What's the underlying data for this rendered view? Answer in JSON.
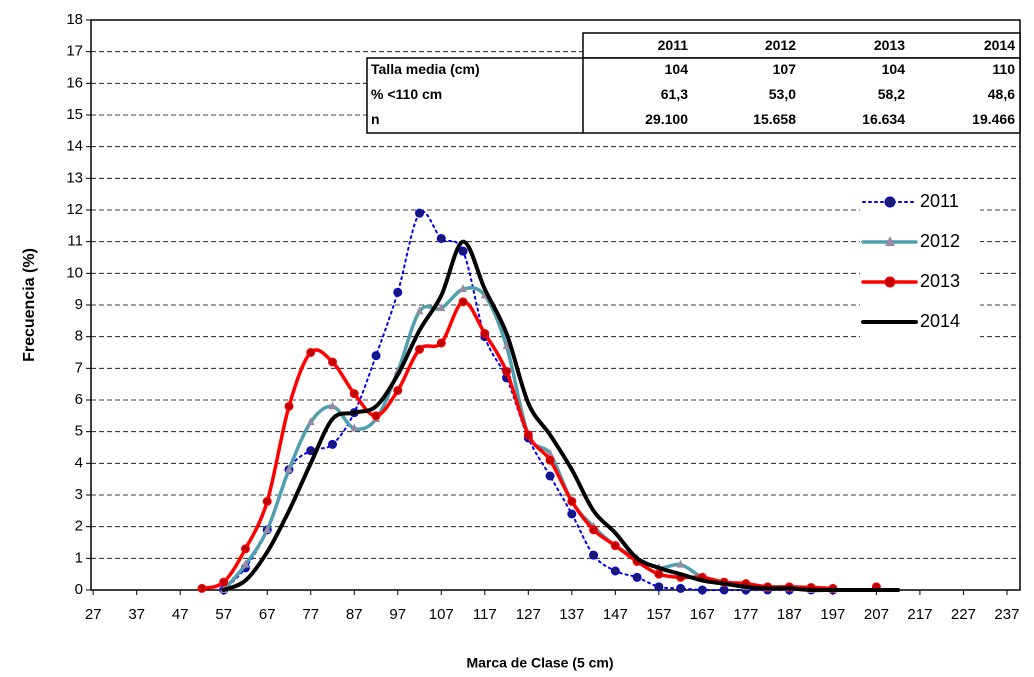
{
  "chart_data": {
    "type": "line",
    "y_label": "Frecuencia (%)",
    "x_label": "Marca de Clase (5 cm)",
    "x": [
      52,
      57,
      62,
      67,
      72,
      77,
      82,
      87,
      92,
      97,
      102,
      107,
      112,
      117,
      122,
      127,
      132,
      137,
      142,
      147,
      152,
      157,
      162,
      167,
      172,
      177,
      182,
      187,
      192,
      197,
      202,
      207,
      212
    ],
    "series": [
      {
        "name": "2011",
        "color": "#0000ee",
        "line_style": "dotted",
        "marker": "circle",
        "marker_color": "#1a1a6e",
        "values": [
          null,
          0,
          0.7,
          1.9,
          3.8,
          4.4,
          4.6,
          5.6,
          7.4,
          9.4,
          11.9,
          11.1,
          10.7,
          8.0,
          6.7,
          4.8,
          3.6,
          2.4,
          1.1,
          0.6,
          0.4,
          0.1,
          0.05,
          0,
          0,
          0,
          0,
          0,
          0,
          0,
          null,
          null,
          null
        ]
      },
      {
        "name": "2012",
        "color": "#4f9fae",
        "line_style": "solid",
        "marker": "triangle",
        "marker_color": "#9a8aa6",
        "values": [
          null,
          0,
          0.8,
          1.9,
          3.8,
          5.3,
          5.8,
          5.1,
          5.4,
          6.9,
          8.8,
          8.9,
          9.5,
          9.3,
          7.7,
          4.9,
          4.3,
          2.8,
          2.0,
          1.4,
          1.0,
          0.7,
          0.8,
          0.4,
          0.2,
          0.1,
          0.05,
          0.05,
          0,
          0,
          null,
          null,
          null
        ]
      },
      {
        "name": "2013",
        "color": "#ff0000",
        "line_style": "solid",
        "marker": "circle",
        "marker_color": "#c00000",
        "values": [
          0.05,
          0.25,
          1.3,
          2.8,
          5.8,
          7.5,
          7.2,
          6.2,
          5.5,
          6.3,
          7.6,
          7.8,
          9.1,
          8.1,
          6.9,
          4.9,
          4.1,
          2.8,
          1.9,
          1.4,
          0.9,
          0.5,
          0.4,
          0.4,
          0.25,
          0.2,
          0.1,
          0.1,
          0.08,
          0.05,
          null,
          0.1,
          null
        ]
      },
      {
        "name": "2014",
        "color": "#000000",
        "line_style": "solid",
        "marker": "none",
        "marker_color": "#000000",
        "values": [
          null,
          0,
          0.3,
          1.2,
          2.5,
          4.0,
          5.4,
          5.6,
          5.8,
          6.8,
          8.2,
          9.3,
          11.0,
          9.5,
          8.1,
          5.9,
          4.9,
          3.8,
          2.5,
          1.8,
          1.0,
          0.7,
          0.5,
          0.3,
          0.2,
          0.1,
          0.05,
          0.05,
          0,
          0,
          0,
          0,
          0
        ]
      }
    ],
    "xlim": [
      26.5,
      240
    ],
    "xticks": [
      27,
      37,
      47,
      57,
      67,
      77,
      87,
      97,
      107,
      117,
      127,
      137,
      147,
      157,
      167,
      177,
      187,
      197,
      207,
      217,
      227,
      237
    ],
    "ylim": [
      0,
      18
    ],
    "yticks": [
      0,
      1,
      2,
      3,
      4,
      5,
      6,
      7,
      8,
      9,
      10,
      11,
      12,
      13,
      14,
      15,
      16,
      17,
      18
    ],
    "grid": true,
    "legend": "right",
    "table": {
      "columns": [
        "2011",
        "2012",
        "2013",
        "2014"
      ],
      "rows": [
        [
          "Talla media (cm)",
          "104",
          "107",
          "104",
          "110"
        ],
        [
          "% <110 cm",
          "61,3",
          "53,0",
          "58,2",
          "48,6"
        ],
        [
          "n",
          "29.100",
          "15.658",
          "16.634",
          "19.466"
        ]
      ]
    }
  }
}
